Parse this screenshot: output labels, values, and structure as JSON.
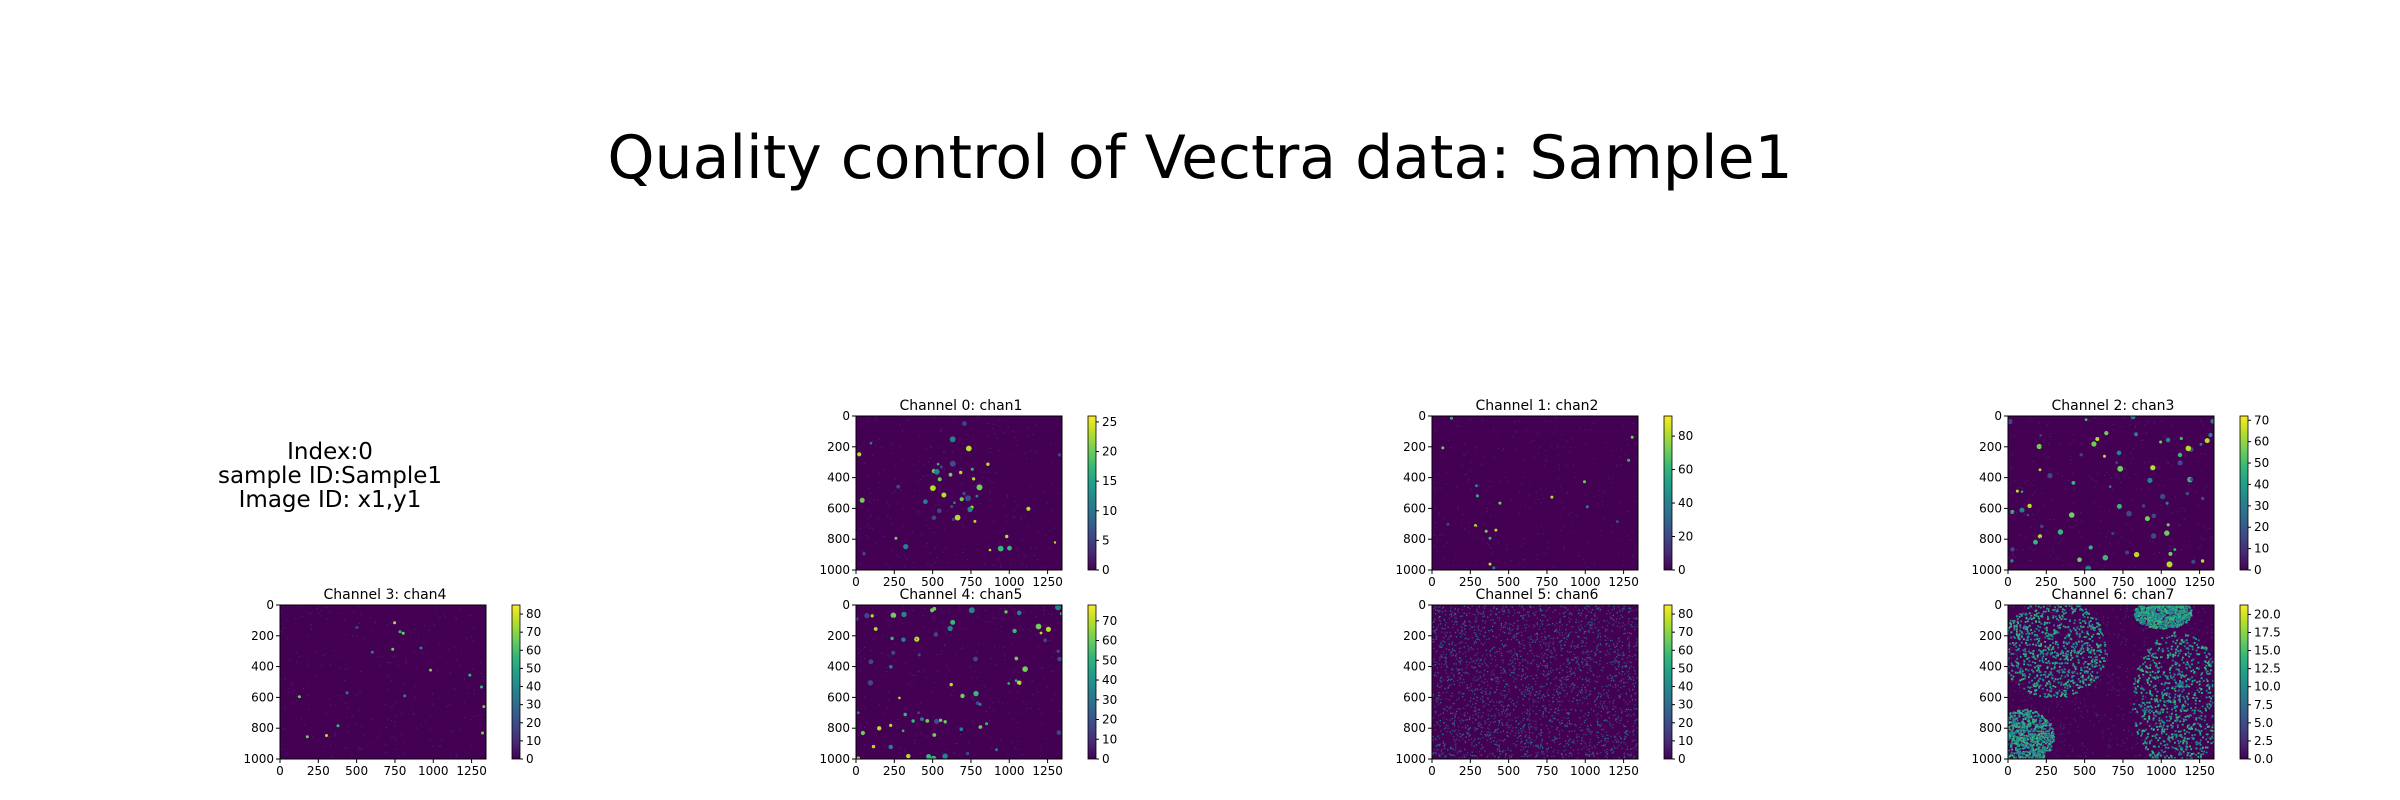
{
  "header": {
    "title": "Quality control of Vectra data: Sample1"
  },
  "info": {
    "index_line": "Index:0",
    "sample_line": "sample ID:Sample1",
    "image_line": "Image ID: x1,y1"
  },
  "colormap": {
    "name": "viridis",
    "stops": [
      "#440154",
      "#482878",
      "#3e4989",
      "#31688e",
      "#26828e",
      "#1f9e89",
      "#35b779",
      "#6ece58",
      "#b5de2b",
      "#fde725"
    ],
    "background": "#440154",
    "dot_colors": [
      "#3e4989",
      "#26828e",
      "#35b779",
      "#6ece58",
      "#b5de2b"
    ]
  },
  "chart_data": [
    {
      "type": "heatmap",
      "title": "Channel 0: chan1",
      "xlim": [
        0,
        1344
      ],
      "ylim": [
        1000,
        0
      ],
      "xticks": [
        "0",
        "250",
        "500",
        "750",
        "1000",
        "1250"
      ],
      "yticks": [
        "0",
        "200",
        "400",
        "600",
        "800",
        "1000"
      ],
      "colorbar": {
        "min": 0,
        "max": 26,
        "ticks": [
          "0",
          "5",
          "10",
          "15",
          "20",
          "25"
        ],
        "values": [
          0,
          5,
          10,
          15,
          20,
          25
        ]
      },
      "pattern": "sparse-cluster"
    },
    {
      "type": "heatmap",
      "title": "Channel 1: chan2",
      "xlim": [
        0,
        1344
      ],
      "ylim": [
        1000,
        0
      ],
      "xticks": [
        "0",
        "250",
        "500",
        "750",
        "1000",
        "1250"
      ],
      "yticks": [
        "0",
        "200",
        "400",
        "600",
        "800",
        "1000"
      ],
      "colorbar": {
        "min": 0,
        "max": 92,
        "ticks": [
          "0",
          "20",
          "40",
          "60",
          "80"
        ],
        "values": [
          0,
          20,
          40,
          60,
          80
        ]
      },
      "pattern": "very-sparse"
    },
    {
      "type": "heatmap",
      "title": "Channel 2: chan3",
      "xlim": [
        0,
        1344
      ],
      "ylim": [
        1000,
        0
      ],
      "xticks": [
        "0",
        "250",
        "500",
        "750",
        "1000",
        "1250"
      ],
      "yticks": [
        "0",
        "200",
        "400",
        "600",
        "800",
        "1000"
      ],
      "colorbar": {
        "min": 0,
        "max": 72,
        "ticks": [
          "0",
          "10",
          "20",
          "30",
          "40",
          "50",
          "60",
          "70"
        ],
        "values": [
          0,
          10,
          20,
          30,
          40,
          50,
          60,
          70
        ]
      },
      "pattern": "scattered"
    },
    {
      "type": "heatmap",
      "title": "Channel 3: chan4",
      "xlim": [
        0,
        1344
      ],
      "ylim": [
        1000,
        0
      ],
      "xticks": [
        "0",
        "250",
        "500",
        "750",
        "1000",
        "1250"
      ],
      "yticks": [
        "0",
        "200",
        "400",
        "600",
        "800",
        "1000"
      ],
      "colorbar": {
        "min": 0,
        "max": 85,
        "ticks": [
          "0",
          "10",
          "20",
          "30",
          "40",
          "50",
          "60",
          "70",
          "80"
        ],
        "values": [
          0,
          10,
          20,
          30,
          40,
          50,
          60,
          70,
          80
        ]
      },
      "pattern": "very-sparse"
    },
    {
      "type": "heatmap",
      "title": "Channel 4: chan5",
      "xlim": [
        0,
        1344
      ],
      "ylim": [
        1000,
        0
      ],
      "xticks": [
        "0",
        "250",
        "500",
        "750",
        "1000",
        "1250"
      ],
      "yticks": [
        "0",
        "200",
        "400",
        "600",
        "800",
        "1000"
      ],
      "colorbar": {
        "min": 0,
        "max": 78,
        "ticks": [
          "0",
          "10",
          "20",
          "30",
          "40",
          "50",
          "60",
          "70"
        ],
        "values": [
          0,
          10,
          20,
          30,
          40,
          50,
          60,
          70
        ]
      },
      "pattern": "scattered"
    },
    {
      "type": "heatmap",
      "title": "Channel 5: chan6",
      "xlim": [
        0,
        1344
      ],
      "ylim": [
        1000,
        0
      ],
      "xticks": [
        "0",
        "250",
        "500",
        "750",
        "1000",
        "1250"
      ],
      "yticks": [
        "0",
        "200",
        "400",
        "600",
        "800",
        "1000"
      ],
      "colorbar": {
        "min": 0,
        "max": 85,
        "ticks": [
          "0",
          "10",
          "20",
          "30",
          "40",
          "50",
          "60",
          "70",
          "80"
        ],
        "values": [
          0,
          10,
          20,
          30,
          40,
          50,
          60,
          70,
          80
        ]
      },
      "pattern": "dense-texture"
    },
    {
      "type": "heatmap",
      "title": "Channel 6: chan7",
      "xlim": [
        0,
        1344
      ],
      "ylim": [
        1000,
        0
      ],
      "xticks": [
        "0",
        "250",
        "500",
        "750",
        "1000",
        "1250"
      ],
      "yticks": [
        "0",
        "200",
        "400",
        "600",
        "800",
        "1000"
      ],
      "colorbar": {
        "min": 0,
        "max": 21.3,
        "ticks": [
          "0.0",
          "2.5",
          "5.0",
          "7.5",
          "10.0",
          "12.5",
          "15.0",
          "17.5",
          "20.0"
        ],
        "values": [
          0,
          2.5,
          5,
          7.5,
          10,
          12.5,
          15,
          17.5,
          20
        ]
      },
      "pattern": "tissue-regions"
    }
  ]
}
